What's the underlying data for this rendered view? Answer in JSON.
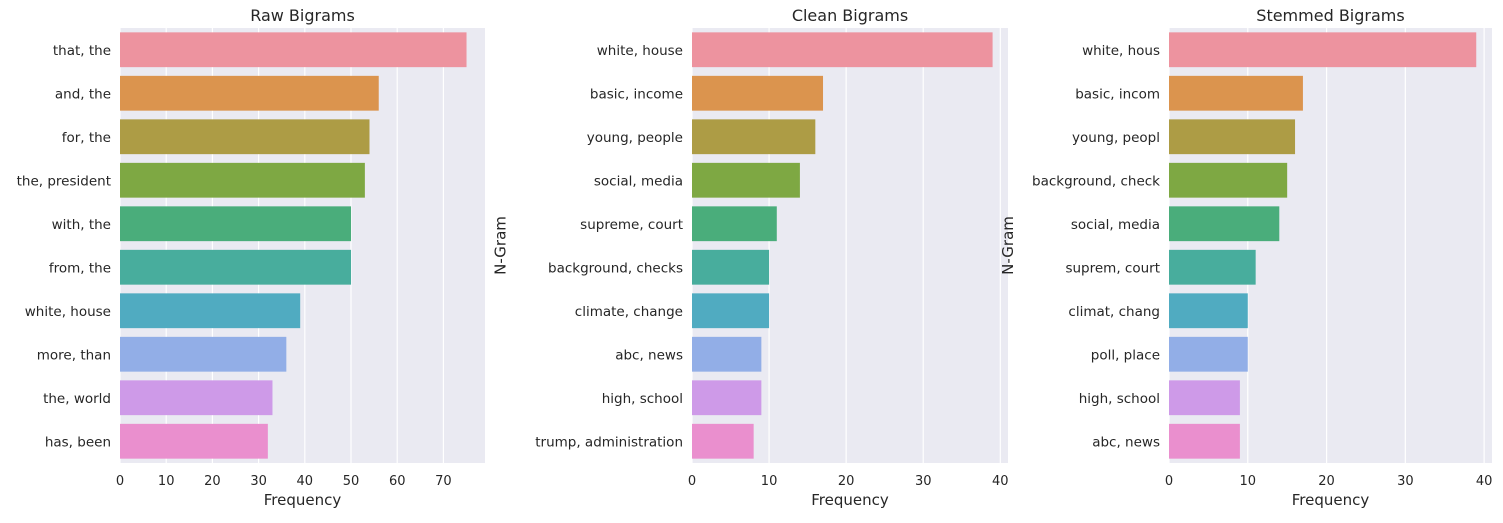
{
  "chart_data": [
    {
      "type": "bar",
      "orientation": "horizontal",
      "title": "Raw Bigrams",
      "xlabel": "Frequency",
      "ylabel": "N-Gram",
      "categories": [
        "that, the",
        "and, the",
        "for, the",
        "the, president",
        "with, the",
        "from, the",
        "white, house",
        "more, than",
        "the, world",
        "has, been"
      ],
      "values": [
        75,
        56,
        54,
        53,
        50,
        50,
        39,
        36,
        33,
        32
      ],
      "xlim": [
        0,
        79
      ],
      "xticks": [
        0,
        10,
        20,
        30,
        40,
        50,
        60,
        70
      ],
      "grid": true,
      "colors": [
        "#ed939f",
        "#db944e",
        "#ad9c45",
        "#7ea843",
        "#4aad7b",
        "#48ad9d",
        "#50abc1",
        "#92aee7",
        "#ce9ae8",
        "#ea8fce"
      ]
    },
    {
      "type": "bar",
      "orientation": "horizontal",
      "title": "Clean Bigrams",
      "xlabel": "Frequency",
      "ylabel": "N-Gram",
      "categories": [
        "white, house",
        "basic, income",
        "young, people",
        "social, media",
        "supreme, court",
        "background, checks",
        "climate, change",
        "abc, news",
        "high, school",
        "trump, administration"
      ],
      "values": [
        39,
        17,
        16,
        14,
        11,
        10,
        10,
        9,
        9,
        8
      ],
      "xlim": [
        0,
        41
      ],
      "xticks": [
        0,
        10,
        20,
        30,
        40
      ],
      "grid": true,
      "colors": [
        "#ed939f",
        "#db944e",
        "#ad9c45",
        "#7ea843",
        "#4aad7b",
        "#48ad9d",
        "#50abc1",
        "#92aee7",
        "#ce9ae8",
        "#ea8fce"
      ]
    },
    {
      "type": "bar",
      "orientation": "horizontal",
      "title": "Stemmed Bigrams",
      "xlabel": "Frequency",
      "ylabel": "N-Gram",
      "categories": [
        "white, hous",
        "basic, incom",
        "young, peopl",
        "background, check",
        "social, media",
        "suprem, court",
        "climat, chang",
        "poll, place",
        "high, school",
        "abc, news"
      ],
      "values": [
        39,
        17,
        16,
        15,
        14,
        11,
        10,
        10,
        9,
        9
      ],
      "xlim": [
        0,
        41
      ],
      "xticks": [
        0,
        10,
        20,
        30,
        40
      ],
      "grid": true,
      "colors": [
        "#ed939f",
        "#db944e",
        "#ad9c45",
        "#7ea843",
        "#4aad7b",
        "#48ad9d",
        "#50abc1",
        "#92aee7",
        "#ce9ae8",
        "#ea8fce"
      ]
    }
  ]
}
